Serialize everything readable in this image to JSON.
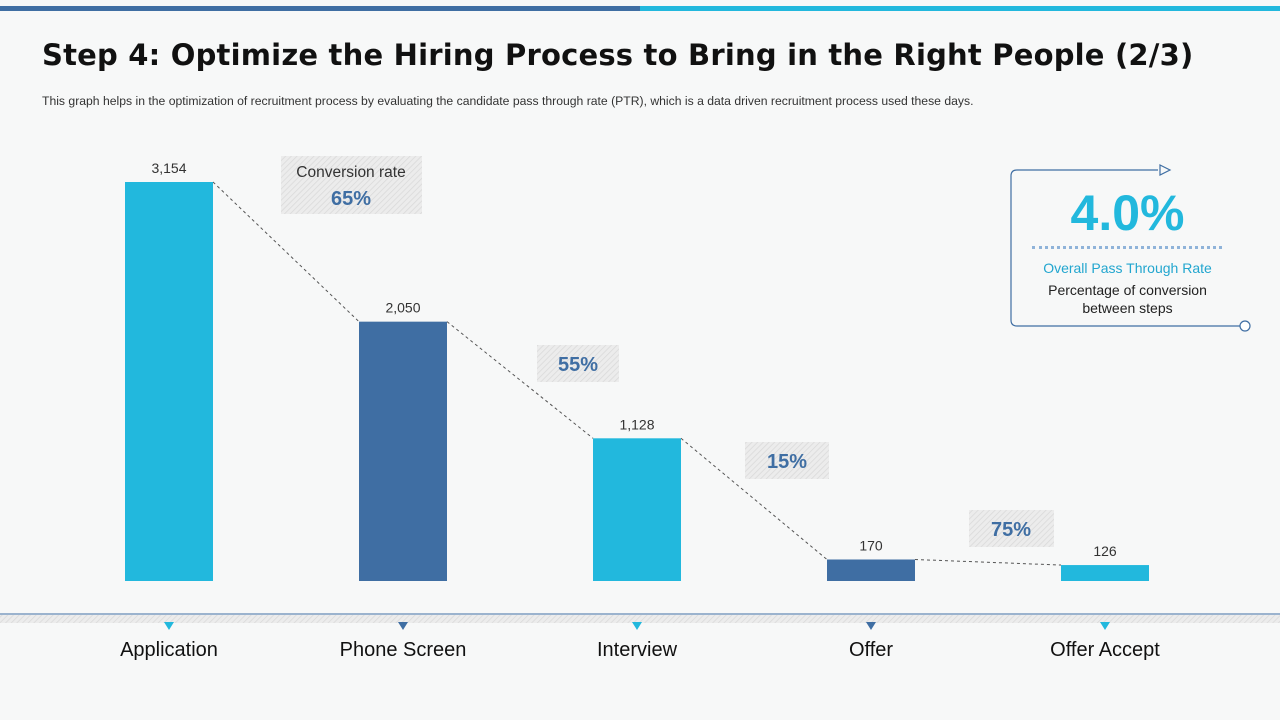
{
  "title": "Step 4: Optimize the Hiring Process to Bring in the Right People (2/3)",
  "subtitle": "This graph helps in the optimization of recruitment process by evaluating the candidate pass through rate (PTR), which is a data driven recruitment  process used these days.",
  "colors": {
    "light": "#22b8dd",
    "dark": "#3f6ea3",
    "accent": "#3f6ea3"
  },
  "kpi": {
    "value": "4.0%",
    "label": "Overall Pass Through Rate",
    "description": "Percentage of conversion between steps"
  },
  "chart_data": {
    "type": "bar",
    "categories": [
      "Application",
      "Phone Screen",
      "Interview",
      "Offer",
      "Offer Accept"
    ],
    "values": [
      3154,
      2050,
      1128,
      170,
      126
    ],
    "value_labels": [
      "3,154",
      "2,050",
      "1,128",
      "170",
      "126"
    ],
    "bar_colors": [
      "light",
      "dark",
      "light",
      "dark",
      "light"
    ],
    "ylim": [
      0,
      3154
    ],
    "conversion_rates": [
      {
        "caption": "Conversion rate",
        "value": "65%"
      },
      {
        "caption": "",
        "value": "55%"
      },
      {
        "caption": "",
        "value": "15%"
      },
      {
        "caption": "",
        "value": "75%"
      }
    ],
    "title": "",
    "xlabel": "",
    "ylabel": "",
    "grid": false
  }
}
